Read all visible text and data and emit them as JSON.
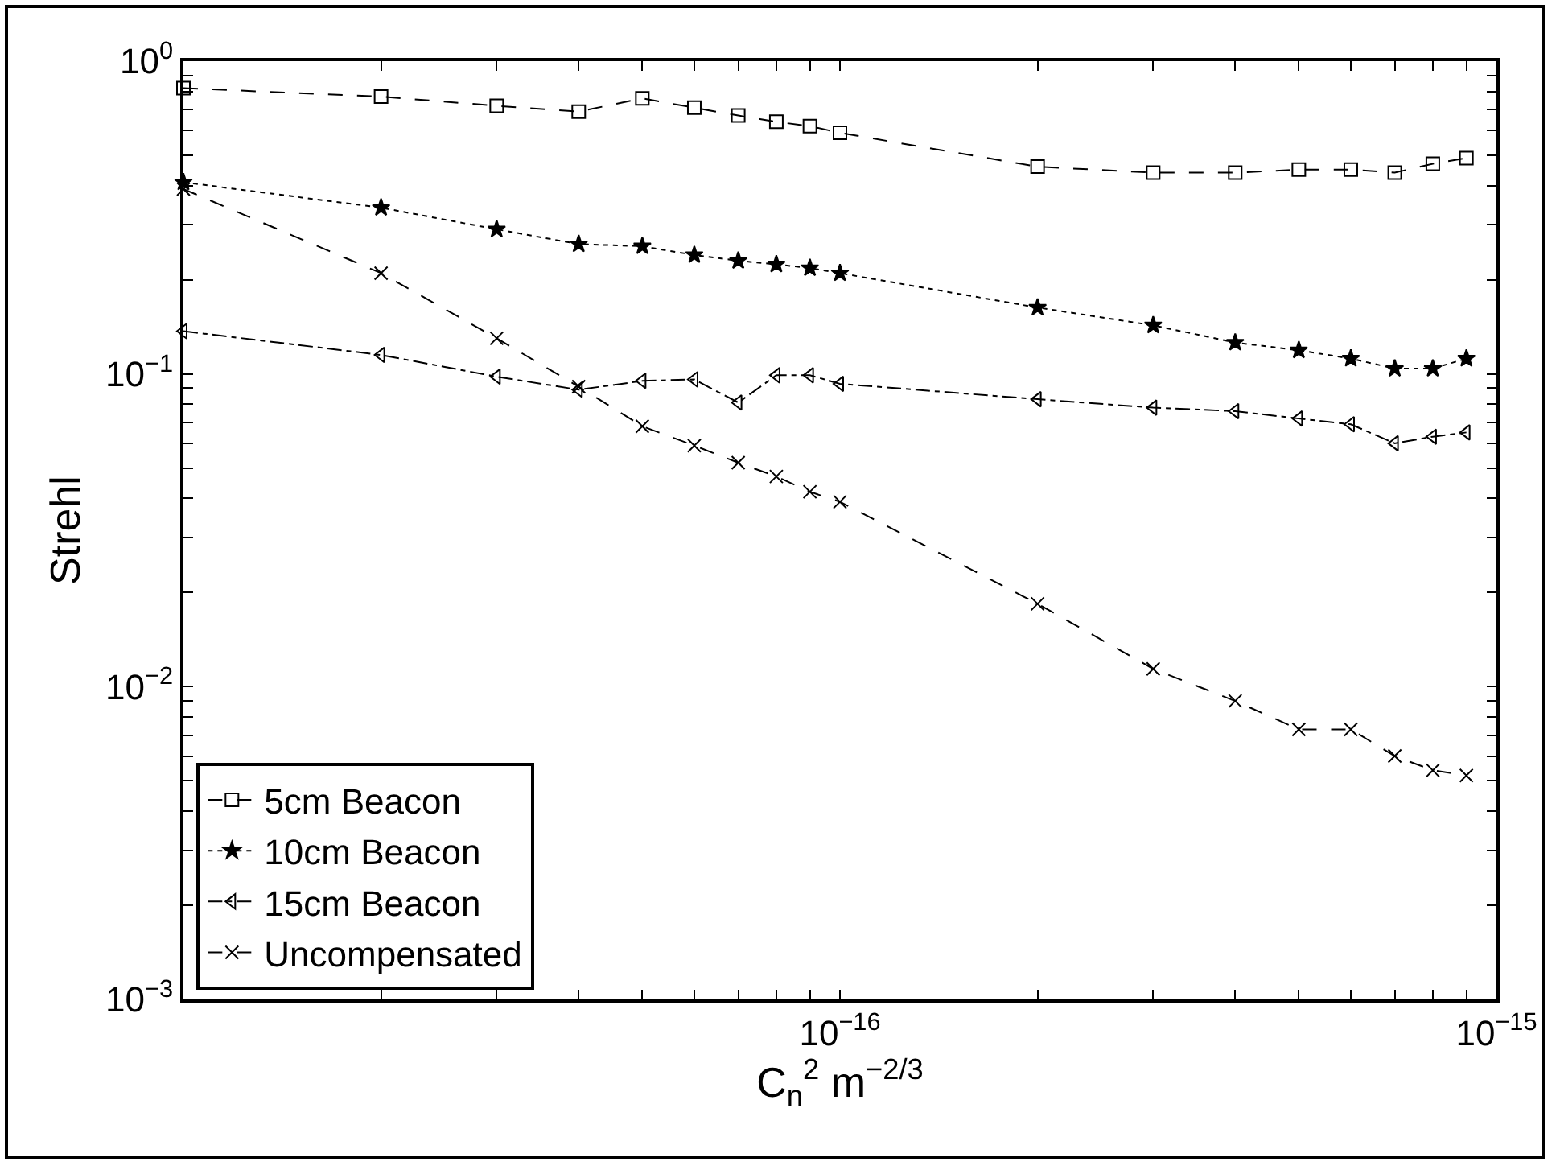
{
  "chart_data": {
    "type": "line",
    "xlabel": "C$_{n}$$^{2}$ m$^{−2/3}$",
    "ylabel": "Strehl",
    "x": [
      1e-17,
      2e-17,
      3e-17,
      4e-17,
      5e-17,
      6e-17,
      7e-17,
      8e-17,
      9e-17,
      1e-16,
      2e-16,
      3e-16,
      4e-16,
      5e-16,
      6e-16,
      7e-16,
      8e-16,
      9e-16
    ],
    "series": [
      {
        "name": "5cm Beacon",
        "color": "#000000",
        "marker": "square",
        "line_style": "dashed",
        "values": [
          0.82,
          0.77,
          0.72,
          0.69,
          0.76,
          0.71,
          0.67,
          0.64,
          0.62,
          0.59,
          0.46,
          0.44,
          0.44,
          0.45,
          0.45,
          0.44,
          0.47,
          0.49
        ]
      },
      {
        "name": "10cm Beacon",
        "color": "#000000",
        "marker": "star",
        "line_style": "dotted",
        "values": [
          0.41,
          0.34,
          0.29,
          0.26,
          0.256,
          0.24,
          0.23,
          0.224,
          0.218,
          0.21,
          0.163,
          0.143,
          0.126,
          0.119,
          0.112,
          0.104,
          0.104,
          0.112
        ]
      },
      {
        "name": "15cm Beacon",
        "color": "#000000",
        "marker": "triangle",
        "line_style": "dashdot",
        "values": [
          0.137,
          0.115,
          0.098,
          0.089,
          0.095,
          0.096,
          0.081,
          0.099,
          0.099,
          0.093,
          0.083,
          0.078,
          0.076,
          0.072,
          0.069,
          0.06,
          0.063,
          0.065
        ]
      },
      {
        "name": "Uncompensated",
        "color": "#000000",
        "marker": "cross",
        "line_style": "dashed",
        "values": [
          0.39,
          0.21,
          0.13,
          0.091,
          0.068,
          0.059,
          0.052,
          0.047,
          0.042,
          0.039,
          0.0184,
          0.0114,
          0.009,
          0.0073,
          0.0073,
          0.006,
          0.0054,
          0.0052
        ]
      }
    ],
    "log": "xy",
    "xlim": [
      1e-17,
      1e-15
    ],
    "xticks": [
      {
        "value": 2e-17,
        "label": null
      },
      {
        "value": 3e-17,
        "label": null
      },
      {
        "value": 4e-17,
        "label": null
      },
      {
        "value": 5e-17,
        "label": null
      },
      {
        "value": 6e-17,
        "label": null
      },
      {
        "value": 7e-17,
        "label": null
      },
      {
        "value": 8e-17,
        "label": null
      },
      {
        "value": 9e-17,
        "label": null
      },
      {
        "value": 1e-16,
        "label": "10$^{−16}$"
      },
      {
        "value": 2e-16,
        "label": null
      },
      {
        "value": 3e-16,
        "label": null
      },
      {
        "value": 4e-16,
        "label": null
      },
      {
        "value": 5e-16,
        "label": null
      },
      {
        "value": 6e-16,
        "label": null
      },
      {
        "value": 7e-16,
        "label": null
      },
      {
        "value": 8e-16,
        "label": null
      },
      {
        "value": 9e-16,
        "label": null
      },
      {
        "value": 1e-15,
        "label": "10$^{−15}$"
      }
    ],
    "ylim": [
      0.001,
      1
    ],
    "yticks": [
      {
        "value": 0.001,
        "label": "10$^{−3}$"
      },
      {
        "value": 0.002,
        "label": null
      },
      {
        "value": 0.003,
        "label": null
      },
      {
        "value": 0.004,
        "label": null
      },
      {
        "value": 0.005,
        "label": null
      },
      {
        "value": 0.006,
        "label": null
      },
      {
        "value": 0.007,
        "label": null
      },
      {
        "value": 0.008,
        "label": null
      },
      {
        "value": 0.009,
        "label": null
      },
      {
        "value": 0.01,
        "label": "10$^{−2}$"
      },
      {
        "value": 0.02,
        "label": null
      },
      {
        "value": 0.03,
        "label": null
      },
      {
        "value": 0.04,
        "label": null
      },
      {
        "value": 0.05,
        "label": null
      },
      {
        "value": 0.06,
        "label": null
      },
      {
        "value": 0.07,
        "label": null
      },
      {
        "value": 0.08,
        "label": null
      },
      {
        "value": 0.09,
        "label": null
      },
      {
        "value": 0.1,
        "label": "10$^{−1}$"
      },
      {
        "value": 0.2,
        "label": null
      },
      {
        "value": 0.3,
        "label": null
      },
      {
        "value": 0.4,
        "label": null
      },
      {
        "value": 0.5,
        "label": null
      },
      {
        "value": 0.6,
        "label": null
      },
      {
        "value": 0.7,
        "label": null
      },
      {
        "value": 0.8,
        "label": null
      },
      {
        "value": 0.9,
        "label": null
      },
      {
        "value": 1,
        "label": "10$^{0}$"
      }
    ],
    "grid": false,
    "legend": "bottom left"
  }
}
